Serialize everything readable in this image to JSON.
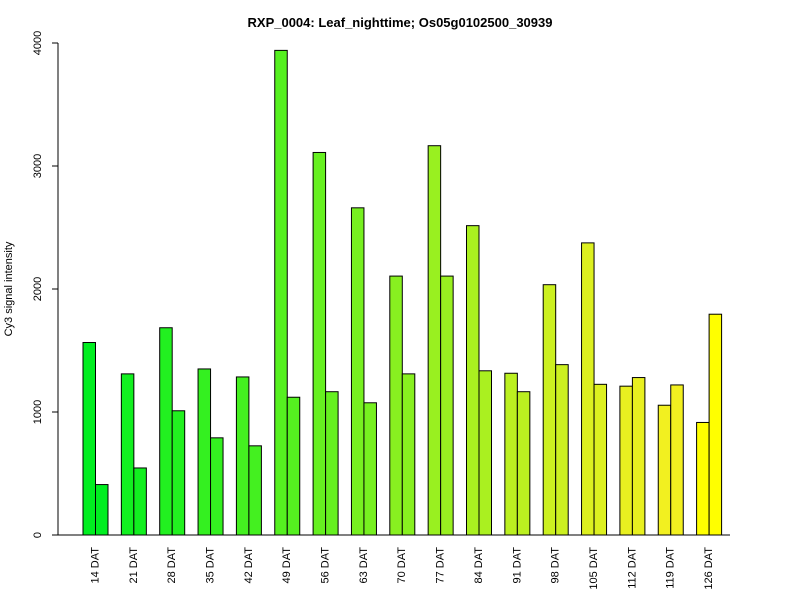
{
  "chart_data": {
    "type": "bar",
    "title": "RXP_0004: Leaf_nighttime; Os05g0102500_30939",
    "xlabel": "",
    "ylabel": "Cy3 signal intensity",
    "ylim": [
      0,
      4000
    ],
    "yticks": [
      0,
      1000,
      2000,
      3000,
      4000
    ],
    "grid": false,
    "legend": "none",
    "categories": [
      "14 DAT",
      "21 DAT",
      "28 DAT",
      "35 DAT",
      "42 DAT",
      "49 DAT",
      "56 DAT",
      "63 DAT",
      "70 DAT",
      "77 DAT",
      "84 DAT",
      "91 DAT",
      "98 DAT",
      "105 DAT",
      "112 DAT",
      "119 DAT",
      "126 DAT"
    ],
    "series": [
      {
        "values": [
          1565,
          1310,
          1685,
          1350,
          1285,
          3940,
          3110,
          2660,
          2105,
          3165,
          2515,
          1315,
          2035,
          2375,
          1210,
          1055,
          915
        ]
      },
      {
        "values": [
          410,
          545,
          1010,
          790,
          725,
          1120,
          1165,
          1075,
          1310,
          2105,
          1335,
          1165,
          1385,
          1225,
          1280,
          1220,
          1795
        ]
      }
    ],
    "bar_colors": [
      "#00ee20",
      "#12f020",
      "#22f020",
      "#34f020",
      "#44f020",
      "#55f020",
      "#66f020",
      "#77f020",
      "#88f020",
      "#99f020",
      "#aaf020",
      "#bbf020",
      "#ccf020",
      "#ddf020",
      "#e8f020",
      "#f2f020",
      "#ffff00"
    ],
    "bar_outline": "#000000"
  }
}
